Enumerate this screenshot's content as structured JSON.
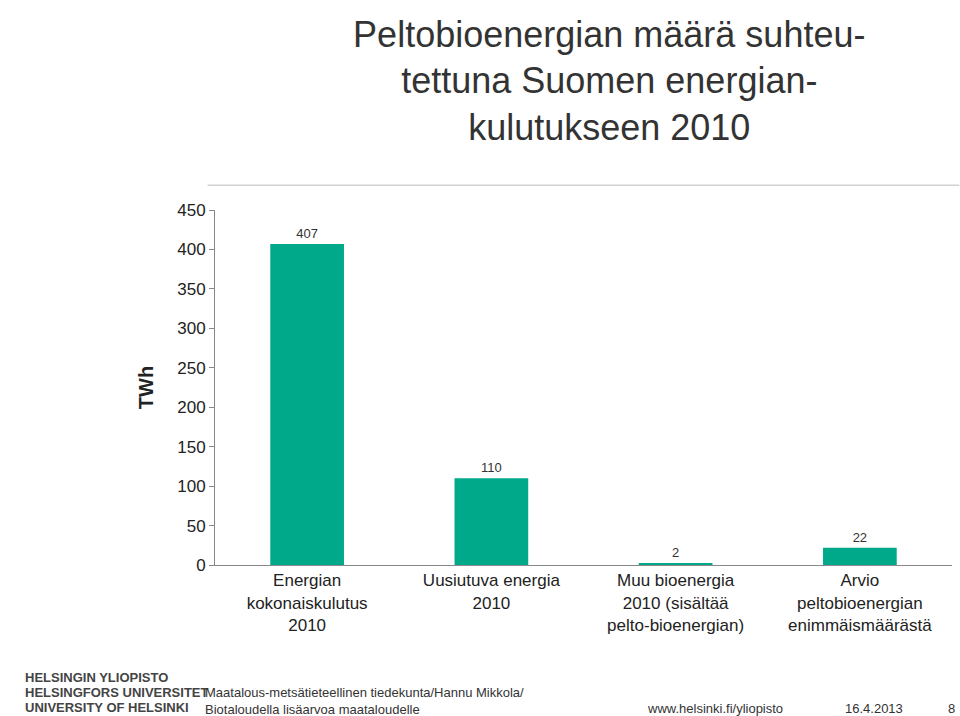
{
  "chart_data": {
    "type": "bar",
    "title": "Peltobioenergian määrä suhteu-\ntettuna Suomen energian-\nkulutukseen 2010",
    "y_label": "TWh",
    "categories": [
      "Energian\nkokonaiskulutus\n2010",
      "Uusiutuva energia\n2010",
      "Muu bioenergia\n2010 (sisältää\npelto-bioenergian)",
      "Arvio\npeltobioenergian\nenimmäismäärästä"
    ],
    "values": [
      407,
      110,
      2,
      22
    ],
    "color": "#00a98a",
    "ylim": [
      0,
      450
    ],
    "yticks": [
      0,
      50,
      100,
      150,
      200,
      250,
      300,
      350,
      400,
      450
    ],
    "grid": false,
    "data_labels": true
  },
  "footer": {
    "logo": [
      "HELSINGIN YLIOPISTO",
      "HELSINGFORS UNIVERSITET",
      "UNIVERSITY OF HELSINKI"
    ],
    "left": [
      "Maatalous-metsätieteellinen tiedekunta/Hannu Mikkola/",
      "Biotaloudella lisäarvoa maataloudelle"
    ],
    "url": "www.helsinki.fi/yliopisto",
    "date": "16.4.2013",
    "page": "8"
  }
}
